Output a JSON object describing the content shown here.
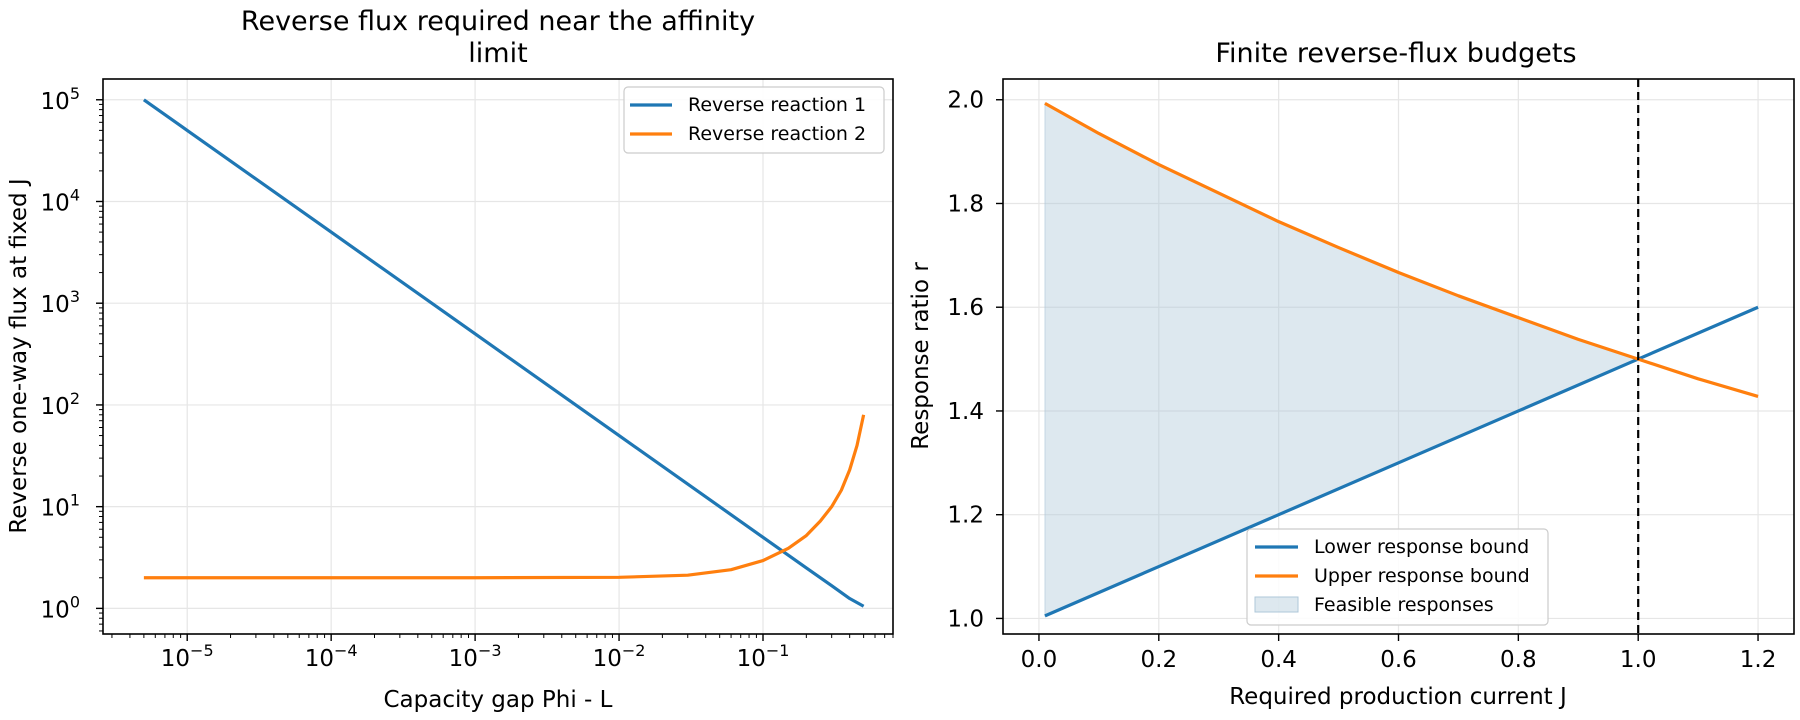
{
  "chart_data": [
    {
      "type": "line",
      "title_line1": "Reverse flux required near the affinity",
      "title_line2": "limit",
      "xlabel": "Capacity gap Phi - L",
      "ylabel": "Reverse one-way flux at fixed J",
      "xscale": "log",
      "yscale": "log",
      "xlim": [
        2.6e-06,
        0.8
      ],
      "ylim": [
        0.56,
        160000.0
      ],
      "grid": true,
      "legend_position": "top-right",
      "x_ticks": [
        {
          "value": 1e-05,
          "base": "10",
          "exp": "−5"
        },
        {
          "value": 0.0001,
          "base": "10",
          "exp": "−4"
        },
        {
          "value": 0.001,
          "base": "10",
          "exp": "−3"
        },
        {
          "value": 0.01,
          "base": "10",
          "exp": "−2"
        },
        {
          "value": 0.1,
          "base": "10",
          "exp": "−1"
        }
      ],
      "y_ticks": [
        {
          "value": 1,
          "base": "10",
          "exp": "0"
        },
        {
          "value": 10,
          "base": "10",
          "exp": "1"
        },
        {
          "value": 100,
          "base": "10",
          "exp": "2"
        },
        {
          "value": 1000,
          "base": "10",
          "exp": "3"
        },
        {
          "value": 10000,
          "base": "10",
          "exp": "4"
        },
        {
          "value": 100000,
          "base": "10",
          "exp": "5"
        }
      ],
      "series": [
        {
          "name": "Reverse reaction 1",
          "color": "#1f77b4",
          "x": [
            5e-06,
            1e-05,
            0.0001,
            0.001,
            0.01,
            0.1,
            0.2,
            0.3,
            0.4,
            0.5
          ],
          "y": [
            100000,
            50000,
            5000,
            500,
            50,
            5,
            2.5,
            1.67,
            1.25,
            1.05
          ]
        },
        {
          "name": "Reverse reaction 2",
          "color": "#ff7f0e",
          "x": [
            5e-06,
            0.0001,
            0.001,
            0.01,
            0.03,
            0.06,
            0.1,
            0.15,
            0.2,
            0.25,
            0.3,
            0.35,
            0.4,
            0.45,
            0.5
          ],
          "y": [
            2.0,
            2.0,
            2.0,
            2.02,
            2.12,
            2.4,
            2.95,
            3.9,
            5.2,
            7.2,
            10.0,
            14.5,
            23,
            40,
            80
          ]
        }
      ]
    },
    {
      "type": "line",
      "title": "Finite reverse-flux budgets",
      "xlabel": "Required production current J",
      "ylabel": "Response ratio r",
      "xlim": [
        -0.06,
        1.26
      ],
      "ylim": [
        0.97,
        2.04
      ],
      "grid": true,
      "legend_position": "bottom-center",
      "x_ticks": [
        0.0,
        0.2,
        0.4,
        0.6,
        0.8,
        1.0,
        1.2
      ],
      "x_tick_labels": [
        "0.0",
        "0.2",
        "0.4",
        "0.6",
        "0.8",
        "1.0",
        "1.2"
      ],
      "y_ticks": [
        1.0,
        1.2,
        1.4,
        1.6,
        1.8,
        2.0
      ],
      "y_tick_labels": [
        "1.0",
        "1.2",
        "1.4",
        "1.6",
        "1.8",
        "2.0"
      ],
      "vline": {
        "x": 1.0,
        "style": "dashed",
        "color": "#000000"
      },
      "series": [
        {
          "name": "Lower response bound",
          "color": "#1f77b4",
          "x": [
            0.01,
            0.2,
            0.4,
            0.6,
            0.8,
            1.0,
            1.2
          ],
          "y": [
            1.005,
            1.1,
            1.2,
            1.3,
            1.4,
            1.5,
            1.6
          ]
        },
        {
          "name": "Upper response bound",
          "color": "#ff7f0e",
          "x": [
            0.01,
            0.1,
            0.2,
            0.3,
            0.4,
            0.5,
            0.6,
            0.7,
            0.8,
            0.9,
            1.0,
            1.1,
            1.2
          ],
          "y": [
            1.993,
            1.935,
            1.875,
            1.82,
            1.765,
            1.715,
            1.667,
            1.622,
            1.58,
            1.538,
            1.5,
            1.462,
            1.428
          ]
        }
      ],
      "fill": {
        "name": "Feasible responses",
        "color": "#aec7d8",
        "between": [
          "Lower response bound",
          "Upper response bound"
        ],
        "x_range": [
          0.01,
          1.0
        ]
      }
    }
  ]
}
